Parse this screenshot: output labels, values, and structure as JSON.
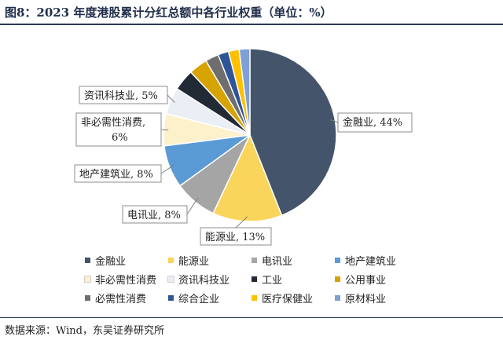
{
  "figure": {
    "title": "图8：2023 年度港股累计分红总额中各行业权重（单位：%）",
    "source": "数据来源：Wind，东吴证券研究所"
  },
  "chart_data": {
    "type": "pie",
    "unit": "%",
    "slices": [
      {
        "name": "金融业",
        "value": 44,
        "color": "#44546a",
        "label": "金融业, 44%"
      },
      {
        "name": "能源业",
        "value": 13,
        "color": "#fad55c",
        "label": "能源业, 13%"
      },
      {
        "name": "电讯业",
        "value": 8,
        "color": "#a5a5a5",
        "label": "电讯业, 8%"
      },
      {
        "name": "地产建筑业",
        "value": 8,
        "color": "#5b9bd5",
        "label": "地产建筑业, 8%"
      },
      {
        "name": "非必需性消费",
        "value": 6,
        "color": "#fdf1cc",
        "label": "非必需性消费, 6%"
      },
      {
        "name": "资讯科技业",
        "value": 5,
        "color": "#eaeef5",
        "label": "资讯科技业, 5%"
      },
      {
        "name": "工业",
        "value": 4,
        "color": "#222a35",
        "label": ""
      },
      {
        "name": "公用事业",
        "value": 3.5,
        "color": "#d6a300",
        "label": ""
      },
      {
        "name": "必需性消费",
        "value": 2.5,
        "color": "#6e6e6e",
        "label": ""
      },
      {
        "name": "综合企业",
        "value": 2,
        "color": "#2e5597",
        "label": ""
      },
      {
        "name": "医疗保健业",
        "value": 2,
        "color": "#ffc000",
        "label": ""
      },
      {
        "name": "原材料业",
        "value": 2,
        "color": "#7f9fd6",
        "label": ""
      }
    ],
    "legend_placement": "bottom"
  }
}
